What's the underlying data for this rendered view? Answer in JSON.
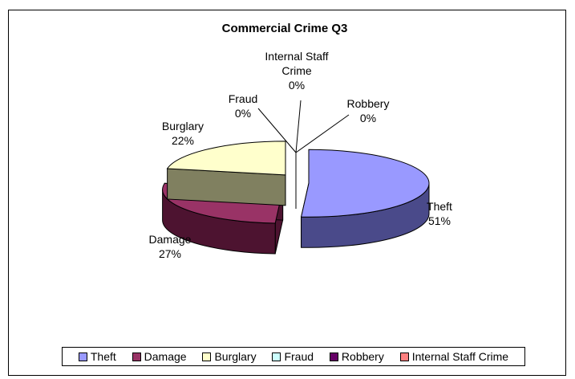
{
  "chart_data": {
    "type": "pie",
    "title": "Commercial Crime Q3",
    "slices": [
      {
        "name": "Theft",
        "value": 51,
        "label": "Theft",
        "pct": "51%",
        "color": "#9999ff",
        "side": "#4a4a8a"
      },
      {
        "name": "Damage",
        "value": 27,
        "label": "Damage",
        "pct": "27%",
        "color": "#993366",
        "side": "#4d1330"
      },
      {
        "name": "Burglary",
        "value": 22,
        "label": "Burglary",
        "pct": "22%",
        "color": "#ffffcc",
        "side": "#808060"
      },
      {
        "name": "Fraud",
        "value": 0,
        "label": "Fraud",
        "pct": "0%",
        "color": "#ccffff"
      },
      {
        "name": "Robbery",
        "value": 0,
        "label": "Robbery",
        "pct": "0%",
        "color": "#660066"
      },
      {
        "name": "Internal Staff Crime",
        "value": 0,
        "label": "Internal Staff\nCrime",
        "pct": "0%",
        "color": "#ff8080"
      }
    ],
    "legend": [
      "Theft",
      "Damage",
      "Burglary",
      "Fraud",
      "Robbery",
      "Internal Staff Crime"
    ],
    "legend_position": "bottom"
  }
}
